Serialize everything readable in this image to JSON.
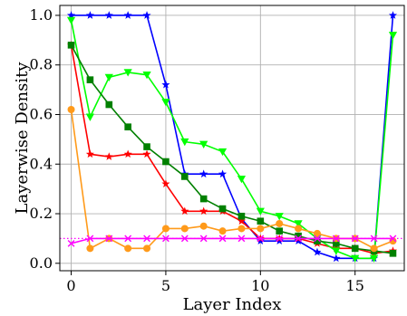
{
  "chart_data": {
    "type": "line",
    "title": "",
    "xlabel": "Layer Index",
    "ylabel": "Layerwise Density",
    "xlim": [
      -0.6,
      17.6
    ],
    "ylim": [
      -0.03,
      1.04
    ],
    "xticks": [
      0,
      5,
      10,
      15
    ],
    "yticks": [
      0.0,
      0.2,
      0.4,
      0.6,
      0.8,
      1.0
    ],
    "grid": true,
    "legend": "none",
    "reference_line": {
      "y": 0.1,
      "color": "#ff00ff",
      "style": "dotted"
    },
    "x": [
      0,
      1,
      2,
      3,
      4,
      5,
      6,
      7,
      8,
      9,
      10,
      11,
      12,
      13,
      14,
      15,
      16,
      17
    ],
    "series": [
      {
        "color": "#0000ff",
        "marker": "star",
        "values": [
          1.0,
          1.0,
          1.0,
          1.0,
          1.0,
          0.72,
          0.36,
          0.36,
          0.36,
          0.18,
          0.09,
          0.09,
          0.09,
          0.045,
          0.02,
          0.02,
          0.02,
          1.0
        ]
      },
      {
        "color": "#ff0000",
        "marker": "star",
        "values": [
          0.88,
          0.44,
          0.43,
          0.44,
          0.44,
          0.32,
          0.21,
          0.21,
          0.21,
          0.17,
          0.1,
          0.1,
          0.1,
          0.08,
          0.06,
          0.06,
          0.04,
          0.05
        ]
      },
      {
        "color": "#00ff00",
        "marker": "triangle-down",
        "values": [
          0.98,
          0.59,
          0.75,
          0.77,
          0.76,
          0.65,
          0.49,
          0.48,
          0.45,
          0.34,
          0.21,
          0.19,
          0.16,
          0.1,
          0.05,
          0.02,
          0.02,
          0.92
        ]
      },
      {
        "color": "#008000",
        "marker": "square",
        "values": [
          0.88,
          0.74,
          0.64,
          0.55,
          0.47,
          0.41,
          0.35,
          0.26,
          0.22,
          0.19,
          0.17,
          0.13,
          0.11,
          0.09,
          0.08,
          0.06,
          0.05,
          0.04
        ]
      },
      {
        "color": "#ff9a1a",
        "marker": "circle",
        "values": [
          0.62,
          0.06,
          0.1,
          0.06,
          0.06,
          0.14,
          0.14,
          0.15,
          0.13,
          0.14,
          0.14,
          0.16,
          0.14,
          0.12,
          0.1,
          0.1,
          0.06,
          0.09
        ]
      },
      {
        "color": "#ff00ff",
        "marker": "x",
        "values": [
          0.08,
          0.1,
          0.1,
          0.1,
          0.1,
          0.1,
          0.1,
          0.1,
          0.1,
          0.1,
          0.1,
          0.1,
          0.1,
          0.1,
          0.1,
          0.1,
          0.1,
          0.1
        ]
      }
    ]
  }
}
